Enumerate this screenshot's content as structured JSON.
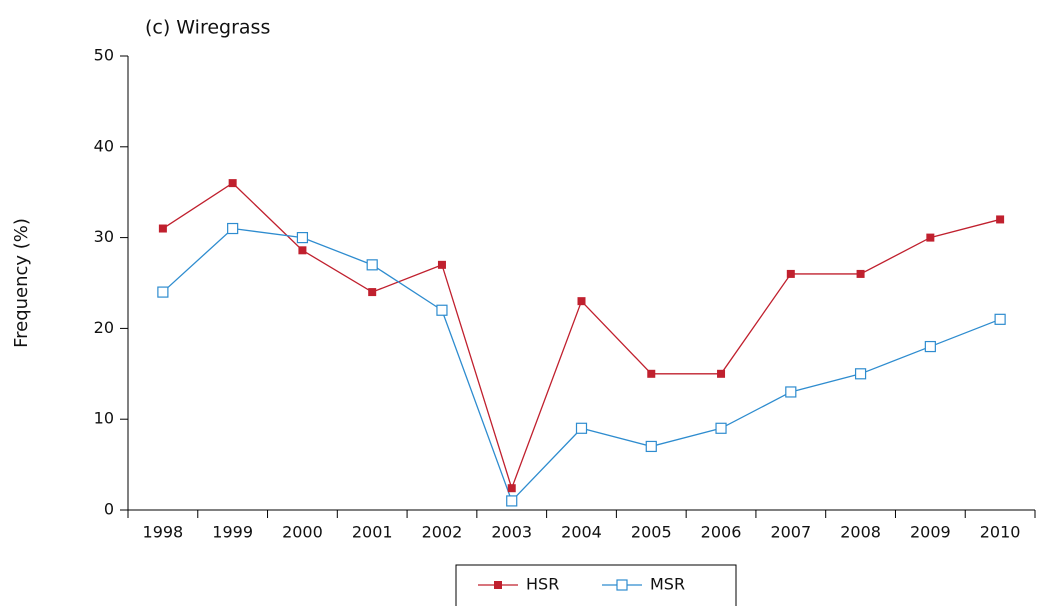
{
  "chart_data": {
    "type": "line",
    "title": "(c) Wiregrass",
    "y_label": "Frequency (%)",
    "categories": [
      "1998",
      "1999",
      "2000",
      "2001",
      "2002",
      "2003",
      "2004",
      "2005",
      "2006",
      "2007",
      "2008",
      "2009",
      "2010"
    ],
    "series": [
      {
        "name": "HSR",
        "color": "#c0202e",
        "marker": "filled-square",
        "values": [
          31,
          36,
          28.6,
          24,
          27,
          2.4,
          23,
          15,
          15,
          26,
          26,
          30,
          32
        ]
      },
      {
        "name": "MSR",
        "color": "#2e8ccf",
        "marker": "open-square",
        "values": [
          24,
          31,
          30,
          27,
          22,
          1,
          9,
          7,
          9,
          13,
          15,
          18,
          21
        ]
      }
    ],
    "ylim": [
      0,
      50
    ],
    "yticks": [
      0,
      10,
      20,
      30,
      40,
      50
    ]
  }
}
